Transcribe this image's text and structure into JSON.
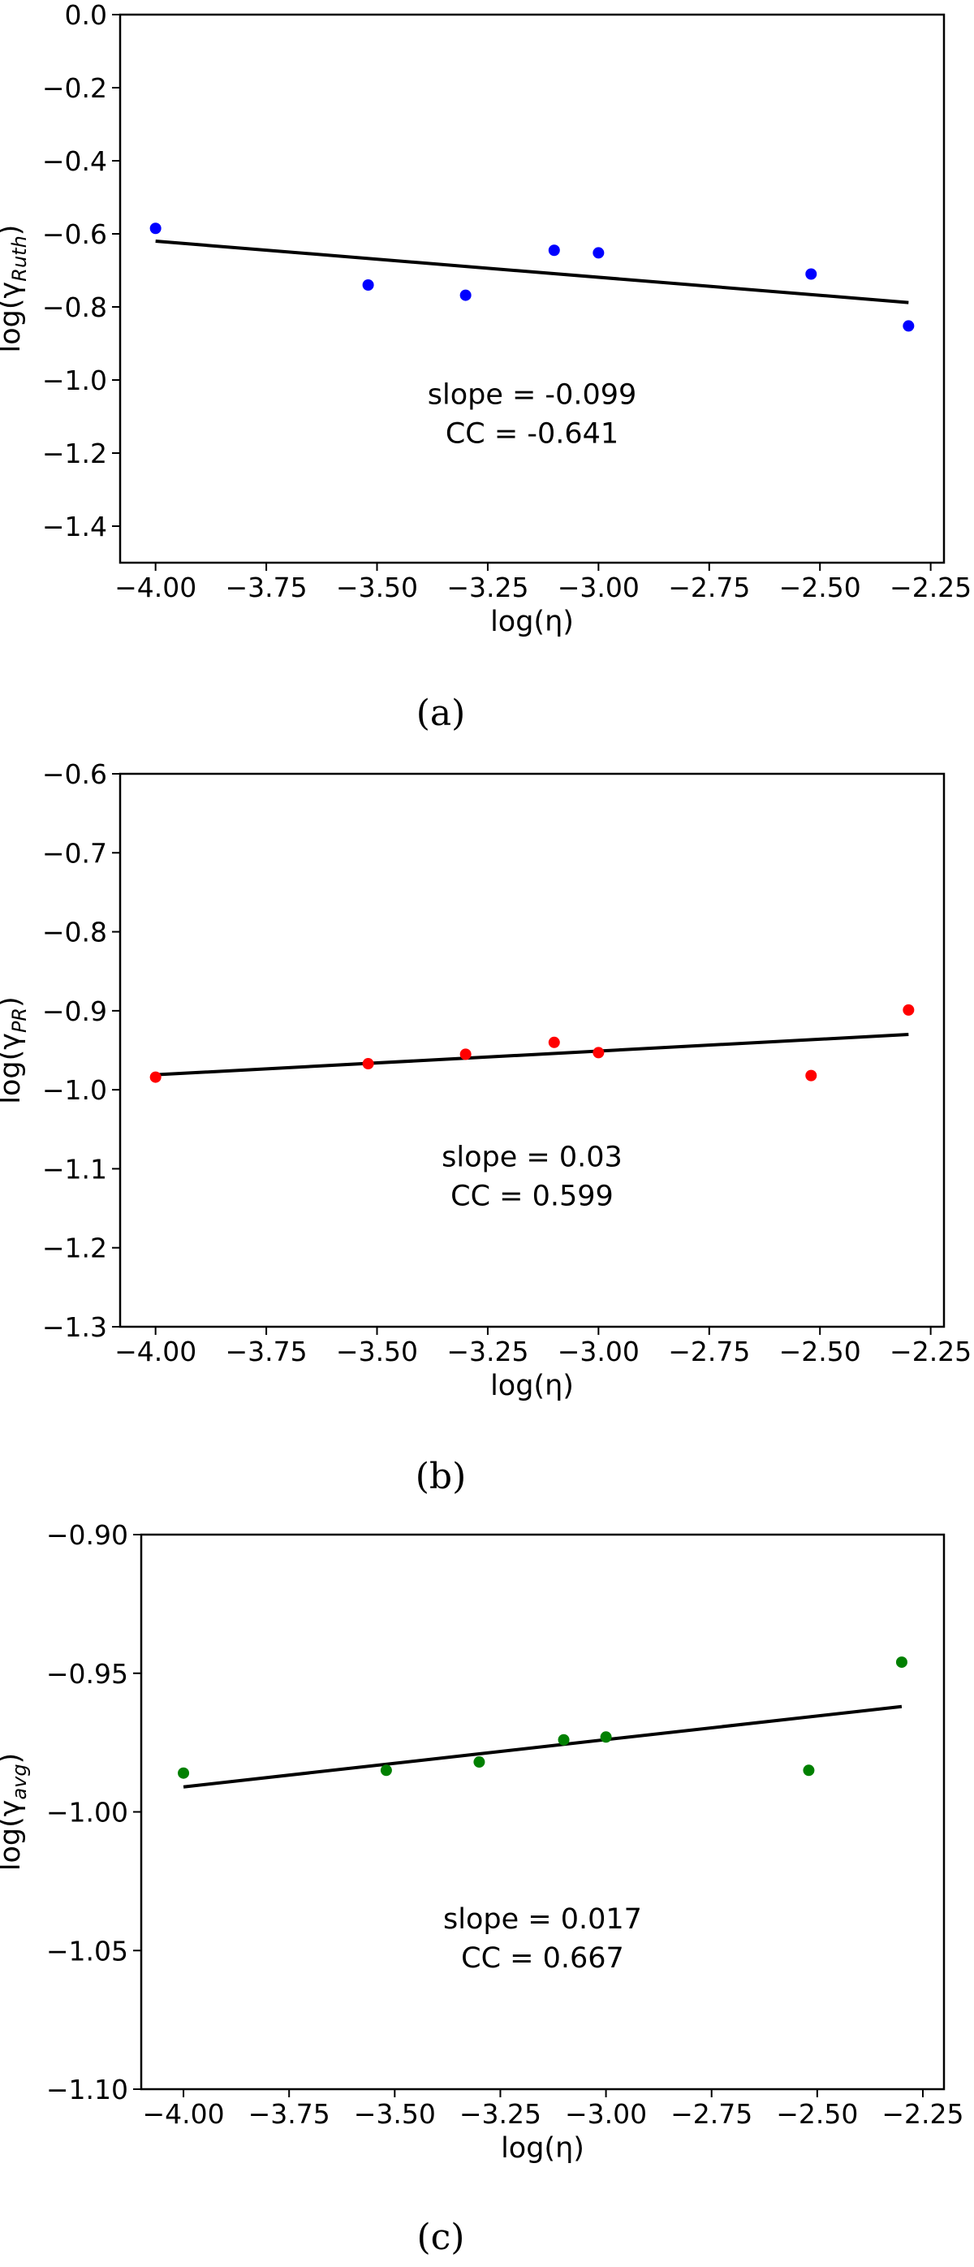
{
  "chart_data": [
    {
      "type": "scatter",
      "caption": "(a)",
      "xlabel": "log(η)",
      "ylabel": {
        "prefix": "log(γ",
        "subscript": "Ruth",
        "suffix": ")"
      },
      "xlim": [
        -4.08,
        -2.22
      ],
      "ylim": [
        -1.5,
        0.0
      ],
      "xticks": [
        "−4.00",
        "−3.75",
        "−3.50",
        "−3.25",
        "−3.00",
        "−2.75",
        "−2.50",
        "−2.25"
      ],
      "yticks": [
        "0.0",
        "−0.2",
        "−0.4",
        "−0.6",
        "−0.8",
        "−1.0",
        "−1.2",
        "−1.4"
      ],
      "point_color": "#0000ff",
      "points": [
        {
          "x": -4.0,
          "y": -0.585
        },
        {
          "x": -3.52,
          "y": -0.74
        },
        {
          "x": -3.3,
          "y": -0.768
        },
        {
          "x": -3.1,
          "y": -0.645
        },
        {
          "x": -3.0,
          "y": -0.652
        },
        {
          "x": -2.52,
          "y": -0.71
        },
        {
          "x": -2.3,
          "y": -0.852
        }
      ],
      "fit_line": {
        "x": [
          -4.0,
          -2.3
        ],
        "y": [
          -0.62,
          -0.788
        ],
        "color": "#000000"
      },
      "annotations": [
        "slope = -0.099",
        "CC = -0.641"
      ]
    },
    {
      "type": "scatter",
      "caption": "(b)",
      "xlabel": "log(η)",
      "ylabel": {
        "prefix": "log(γ",
        "subscript": "PR",
        "suffix": ")"
      },
      "xlim": [
        -4.08,
        -2.22
      ],
      "ylim": [
        -1.3,
        -0.6
      ],
      "xticks": [
        "−4.00",
        "−3.75",
        "−3.50",
        "−3.25",
        "−3.00",
        "−2.75",
        "−2.50",
        "−2.25"
      ],
      "yticks": [
        "−0.6",
        "−0.7",
        "−0.8",
        "−0.9",
        "−1.0",
        "−1.1",
        "−1.2",
        "−1.3"
      ],
      "point_color": "#ff0000",
      "points": [
        {
          "x": -4.0,
          "y": -0.984
        },
        {
          "x": -3.52,
          "y": -0.967
        },
        {
          "x": -3.3,
          "y": -0.955
        },
        {
          "x": -3.1,
          "y": -0.94
        },
        {
          "x": -3.0,
          "y": -0.953
        },
        {
          "x": -2.52,
          "y": -0.982
        },
        {
          "x": -2.3,
          "y": -0.899
        }
      ],
      "fit_line": {
        "x": [
          -4.0,
          -2.3
        ],
        "y": [
          -0.981,
          -0.93
        ],
        "color": "#000000"
      },
      "annotations": [
        "slope = 0.03",
        "CC = 0.599"
      ]
    },
    {
      "type": "scatter",
      "caption": "(c)",
      "xlabel": "log(η)",
      "ylabel": {
        "prefix": "log(γ",
        "subscript": "avg",
        "suffix": ")"
      },
      "xlim": [
        -4.1,
        -2.2
      ],
      "ylim": [
        -1.1,
        -0.9
      ],
      "xticks": [
        "−4.00",
        "−3.75",
        "−3.50",
        "−3.25",
        "−3.00",
        "−2.75",
        "−2.50",
        "−2.25"
      ],
      "yticks": [
        "−0.90",
        "−0.95",
        "−1.00",
        "−1.05",
        "−1.10"
      ],
      "point_color": "#008000",
      "points": [
        {
          "x": -4.0,
          "y": -0.986
        },
        {
          "x": -3.52,
          "y": -0.985
        },
        {
          "x": -3.3,
          "y": -0.982
        },
        {
          "x": -3.1,
          "y": -0.974
        },
        {
          "x": -3.0,
          "y": -0.973
        },
        {
          "x": -2.52,
          "y": -0.985
        },
        {
          "x": -2.3,
          "y": -0.946
        }
      ],
      "fit_line": {
        "x": [
          -4.0,
          -2.3
        ],
        "y": [
          -0.991,
          -0.962
        ],
        "color": "#000000"
      },
      "annotations": [
        "slope = 0.017",
        "CC = 0.667"
      ]
    }
  ]
}
